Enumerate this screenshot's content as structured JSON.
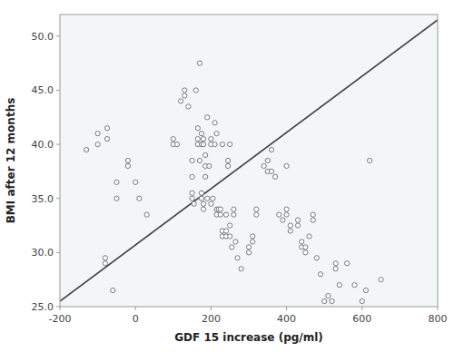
{
  "chart_data": {
    "type": "scatter",
    "xlabel": "GDF 15 increase (pg/ml)",
    "ylabel": "BMI after 12 months",
    "xlim": [
      -200,
      800
    ],
    "ylim": [
      25.0,
      52.0
    ],
    "xticks": [
      -200,
      0,
      200,
      400,
      600,
      800
    ],
    "yticks": [
      {
        "value": 25.0,
        "label": "25.0"
      },
      {
        "value": 30.0,
        "label": "30.0"
      },
      {
        "value": 35.0,
        "label": "35.0"
      },
      {
        "value": 40.0,
        "label": "40.0"
      },
      {
        "value": 45.0,
        "label": "45.0"
      },
      {
        "value": 50.0,
        "label": "50.0"
      }
    ],
    "grid": false,
    "series": [
      {
        "type": "line",
        "color": "#444444",
        "x": [
          -200,
          800
        ],
        "values": [
          25.5,
          51.5
        ]
      },
      {
        "type": "scatter",
        "color": "#777777",
        "x": [
          -100,
          -100,
          -75,
          -75,
          -130,
          -50,
          -50,
          -20,
          -20,
          0,
          10,
          30,
          -80,
          -80,
          -60,
          100,
          100,
          110,
          120,
          130,
          130,
          140,
          150,
          150,
          150,
          150,
          155,
          160,
          165,
          165,
          165,
          170,
          170,
          175,
          175,
          175,
          175,
          180,
          180,
          180,
          180,
          185,
          185,
          185,
          190,
          190,
          195,
          200,
          200,
          200,
          205,
          210,
          210,
          215,
          215,
          215,
          220,
          225,
          225,
          230,
          230,
          230,
          240,
          240,
          240,
          245,
          245,
          250,
          250,
          250,
          255,
          260,
          260,
          265,
          270,
          280,
          300,
          300,
          310,
          310,
          320,
          320,
          340,
          350,
          350,
          360,
          360,
          370,
          380,
          390,
          400,
          400,
          400,
          410,
          410,
          430,
          430,
          440,
          440,
          450,
          450,
          460,
          470,
          470,
          480,
          490,
          500,
          510,
          520,
          530,
          530,
          540,
          560,
          580,
          600,
          610,
          620,
          650
        ],
        "values": [
          40.0,
          41.0,
          40.5,
          41.5,
          39.5,
          35.0,
          36.5,
          38.0,
          38.5,
          36.5,
          35.0,
          33.5,
          29.0,
          29.5,
          26.5,
          40.0,
          40.5,
          40.0,
          44.0,
          45.0,
          44.5,
          43.5,
          37.0,
          38.5,
          35.5,
          35.0,
          34.5,
          45.0,
          40.5,
          40.0,
          41.5,
          47.5,
          38.5,
          41.0,
          40.0,
          35.5,
          35.0,
          34.5,
          34.0,
          40.0,
          40.5,
          38.0,
          39.0,
          37.0,
          35.0,
          42.5,
          38.0,
          34.5,
          40.0,
          40.5,
          35.0,
          40.0,
          42.0,
          41.0,
          34.0,
          33.5,
          34.0,
          34.0,
          33.5,
          40.0,
          32.0,
          31.5,
          32.0,
          31.5,
          33.5,
          38.0,
          38.5,
          40.0,
          32.5,
          31.5,
          30.5,
          33.5,
          34.0,
          31.0,
          29.5,
          28.5,
          30.5,
          30.0,
          31.0,
          31.5,
          34.0,
          33.5,
          38.0,
          37.5,
          38.5,
          39.5,
          37.5,
          37.0,
          33.5,
          33.0,
          34.0,
          33.5,
          38.0,
          32.0,
          32.5,
          33.0,
          32.5,
          30.5,
          31.0,
          30.5,
          30.0,
          31.5,
          33.0,
          33.5,
          29.5,
          28.0,
          25.5,
          26.0,
          25.5,
          28.5,
          29.0,
          27.0,
          29.0,
          27.0,
          25.5,
          26.5,
          38.5,
          27.5
        ]
      }
    ]
  }
}
